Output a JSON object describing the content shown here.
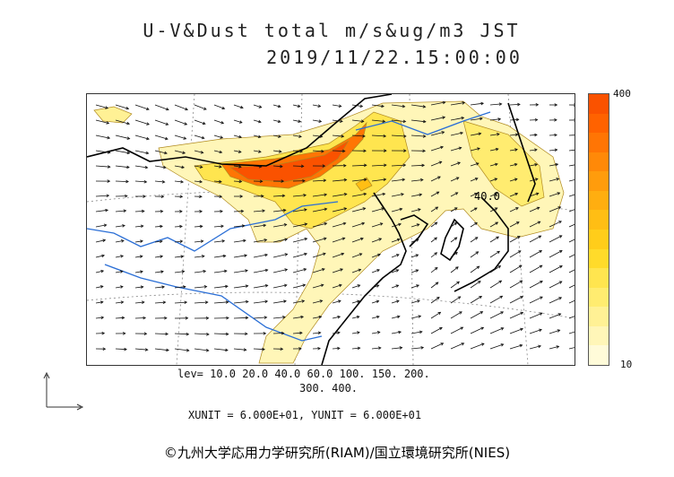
{
  "title": {
    "line1": "U-V&Dust total m/s&ug/m3 JST",
    "line2": "2019/11/22.15:00:00"
  },
  "colorbar": {
    "max_label": "400",
    "min_label": "10",
    "colors": [
      "#fffbd9",
      "#fff6b8",
      "#fff195",
      "#ffec70",
      "#ffe54f",
      "#ffdb2a",
      "#ffcd1a",
      "#ffbe14",
      "#ffae10",
      "#ff9c0c",
      "#ff8908",
      "#ff7504",
      "#ff6200",
      "#fa5200"
    ]
  },
  "contour_label": "40.0",
  "levels": {
    "line1": "lev= 10.0 20.0 40.0 60.0 100. 150. 200.",
    "line2": "300. 400."
  },
  "units": "XUNIT = 6.000E+01, YUNIT = 6.000E+01",
  "copyright": "©九州大学応用力学研究所(RIAM)/国立環境研究所(NIES)",
  "icons": {
    "reference_axes": "axes-arrows-icon"
  }
}
